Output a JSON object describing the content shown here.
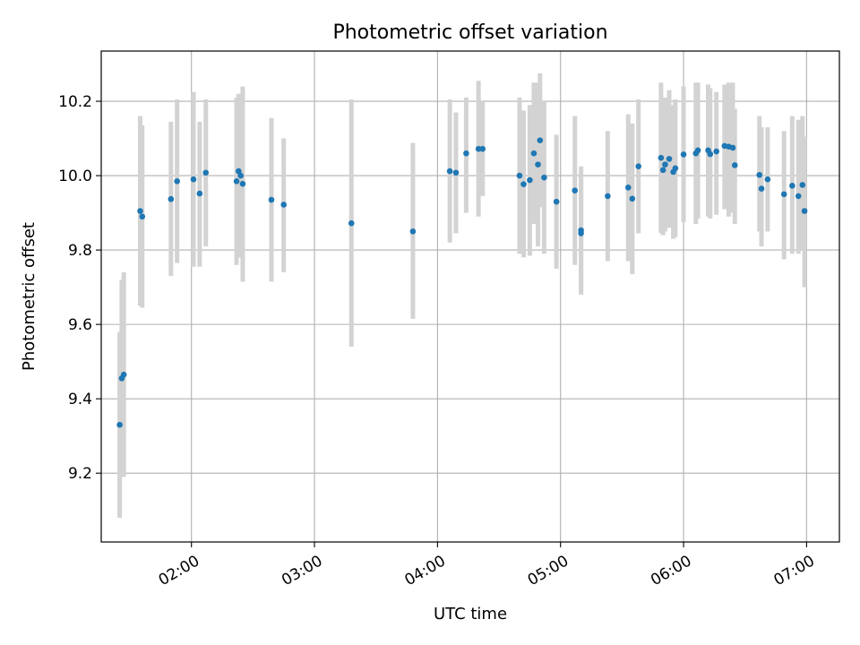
{
  "chart_data": {
    "type": "scatter",
    "title": "Photometric offset variation",
    "xlabel": "UTC time",
    "ylabel": "Photometric offset",
    "x_unit": "UTC time (HH:MM)",
    "xlim": [
      "01:16",
      "07:16"
    ],
    "ylim": [
      9.015,
      10.335
    ],
    "x_ticks": [
      "02:00",
      "03:00",
      "04:00",
      "05:00",
      "06:00",
      "07:00"
    ],
    "y_ticks": [
      9.2,
      9.4,
      9.6,
      9.8,
      10.0,
      10.2
    ],
    "grid": true,
    "x_tick_rotation": "30°",
    "colors": {
      "point": "#1f77b4",
      "error_bar": "#d3d3d3",
      "grid": "#b0b0b0"
    },
    "points": [
      {
        "x": "01:25",
        "y": 9.33,
        "ylow": 9.08,
        "yhigh": 9.58
      },
      {
        "x": "01:26",
        "y": 9.455,
        "ylow": 9.19,
        "yhigh": 9.72
      },
      {
        "x": "01:27",
        "y": 9.465,
        "ylow": 9.19,
        "yhigh": 9.74
      },
      {
        "x": "01:35",
        "y": 9.905,
        "ylow": 9.65,
        "yhigh": 10.16
      },
      {
        "x": "01:36",
        "y": 9.89,
        "ylow": 9.645,
        "yhigh": 10.135
      },
      {
        "x": "01:50",
        "y": 9.937,
        "ylow": 9.73,
        "yhigh": 10.145
      },
      {
        "x": "01:53",
        "y": 9.985,
        "ylow": 9.765,
        "yhigh": 10.205
      },
      {
        "x": "02:01",
        "y": 9.99,
        "ylow": 9.755,
        "yhigh": 10.225
      },
      {
        "x": "02:04",
        "y": 9.952,
        "ylow": 9.755,
        "yhigh": 10.145
      },
      {
        "x": "02:07",
        "y": 10.008,
        "ylow": 9.81,
        "yhigh": 10.205
      },
      {
        "x": "02:22",
        "y": 9.985,
        "ylow": 9.76,
        "yhigh": 10.21
      },
      {
        "x": "02:23",
        "y": 10.012,
        "ylow": 9.8,
        "yhigh": 10.22
      },
      {
        "x": "02:24",
        "y": 10.0,
        "ylow": 9.78,
        "yhigh": 10.22
      },
      {
        "x": "02:25",
        "y": 9.978,
        "ylow": 9.715,
        "yhigh": 10.24
      },
      {
        "x": "02:39",
        "y": 9.935,
        "ylow": 9.715,
        "yhigh": 10.155
      },
      {
        "x": "02:45",
        "y": 9.922,
        "ylow": 9.74,
        "yhigh": 10.1
      },
      {
        "x": "03:18",
        "y": 9.872,
        "ylow": 9.54,
        "yhigh": 10.205
      },
      {
        "x": "03:48",
        "y": 9.85,
        "ylow": 9.615,
        "yhigh": 10.088
      },
      {
        "x": "04:06",
        "y": 10.012,
        "ylow": 9.82,
        "yhigh": 10.205
      },
      {
        "x": "04:09",
        "y": 10.008,
        "ylow": 9.845,
        "yhigh": 10.17
      },
      {
        "x": "04:14",
        "y": 10.06,
        "ylow": 9.9,
        "yhigh": 10.21
      },
      {
        "x": "04:20",
        "y": 10.072,
        "ylow": 9.89,
        "yhigh": 10.255
      },
      {
        "x": "04:22",
        "y": 10.072,
        "ylow": 9.945,
        "yhigh": 10.2
      },
      {
        "x": "04:40",
        "y": 10.0,
        "ylow": 9.79,
        "yhigh": 10.21
      },
      {
        "x": "04:42",
        "y": 9.977,
        "ylow": 9.78,
        "yhigh": 10.175
      },
      {
        "x": "04:45",
        "y": 9.988,
        "ylow": 9.785,
        "yhigh": 10.19
      },
      {
        "x": "04:47",
        "y": 10.06,
        "ylow": 9.87,
        "yhigh": 10.25
      },
      {
        "x": "04:49",
        "y": 10.03,
        "ylow": 9.81,
        "yhigh": 10.25
      },
      {
        "x": "04:50",
        "y": 10.095,
        "ylow": 9.915,
        "yhigh": 10.275
      },
      {
        "x": "04:52",
        "y": 9.995,
        "ylow": 9.79,
        "yhigh": 10.2
      },
      {
        "x": "04:58",
        "y": 9.93,
        "ylow": 9.75,
        "yhigh": 10.11
      },
      {
        "x": "05:07",
        "y": 9.96,
        "ylow": 9.76,
        "yhigh": 10.16
      },
      {
        "x": "05:10",
        "y": 9.853,
        "ylow": 9.68,
        "yhigh": 10.025
      },
      {
        "x": "05:10",
        "y": 9.845,
        "ylow": 9.685,
        "yhigh": 10.005
      },
      {
        "x": "05:23",
        "y": 9.945,
        "ylow": 9.77,
        "yhigh": 10.12
      },
      {
        "x": "05:33",
        "y": 9.968,
        "ylow": 9.77,
        "yhigh": 10.165
      },
      {
        "x": "05:35",
        "y": 9.938,
        "ylow": 9.735,
        "yhigh": 10.14
      },
      {
        "x": "05:38",
        "y": 10.025,
        "ylow": 9.845,
        "yhigh": 10.205
      },
      {
        "x": "05:49",
        "y": 10.048,
        "ylow": 9.845,
        "yhigh": 10.25
      },
      {
        "x": "05:50",
        "y": 10.015,
        "ylow": 9.84,
        "yhigh": 10.19
      },
      {
        "x": "05:51",
        "y": 10.03,
        "ylow": 9.85,
        "yhigh": 10.21
      },
      {
        "x": "05:53",
        "y": 10.045,
        "ylow": 9.86,
        "yhigh": 10.23
      },
      {
        "x": "05:55",
        "y": 10.01,
        "ylow": 9.83,
        "yhigh": 10.19
      },
      {
        "x": "05:56",
        "y": 10.02,
        "ylow": 9.835,
        "yhigh": 10.205
      },
      {
        "x": "06:00",
        "y": 10.057,
        "ylow": 9.875,
        "yhigh": 10.24
      },
      {
        "x": "06:06",
        "y": 10.06,
        "ylow": 9.87,
        "yhigh": 10.25
      },
      {
        "x": "06:07",
        "y": 10.068,
        "ylow": 9.885,
        "yhigh": 10.25
      },
      {
        "x": "06:12",
        "y": 10.068,
        "ylow": 9.89,
        "yhigh": 10.245
      },
      {
        "x": "06:13",
        "y": 10.058,
        "ylow": 9.885,
        "yhigh": 10.235
      },
      {
        "x": "06:16",
        "y": 10.065,
        "ylow": 9.895,
        "yhigh": 10.225
      },
      {
        "x": "06:20",
        "y": 10.08,
        "ylow": 9.91,
        "yhigh": 10.245
      },
      {
        "x": "06:22",
        "y": 10.078,
        "ylow": 9.89,
        "yhigh": 10.25
      },
      {
        "x": "06:24",
        "y": 10.075,
        "ylow": 9.9,
        "yhigh": 10.25
      },
      {
        "x": "06:25",
        "y": 10.028,
        "ylow": 9.87,
        "yhigh": 10.18
      },
      {
        "x": "06:37",
        "y": 10.002,
        "ylow": 9.85,
        "yhigh": 10.16
      },
      {
        "x": "06:38",
        "y": 9.965,
        "ylow": 9.81,
        "yhigh": 10.13
      },
      {
        "x": "06:41",
        "y": 9.99,
        "ylow": 9.85,
        "yhigh": 10.13
      },
      {
        "x": "06:49",
        "y": 9.95,
        "ylow": 9.775,
        "yhigh": 10.12
      },
      {
        "x": "06:53",
        "y": 9.973,
        "ylow": 9.79,
        "yhigh": 10.16
      },
      {
        "x": "06:56",
        "y": 9.945,
        "ylow": 9.79,
        "yhigh": 10.15
      },
      {
        "x": "06:58",
        "y": 9.975,
        "ylow": 9.8,
        "yhigh": 10.16
      },
      {
        "x": "06:59",
        "y": 9.905,
        "ylow": 9.7,
        "yhigh": 10.105
      }
    ]
  }
}
